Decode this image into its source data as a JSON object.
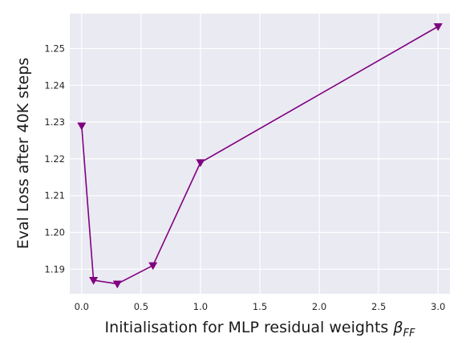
{
  "chart_data": {
    "type": "line",
    "title": "",
    "xlabel_text": "Initialisation for MLP residual weights ",
    "xlabel_symbol": "β",
    "xlabel_subscript": "FF",
    "ylabel": "Eval Loss after 40K steps",
    "xlim": [
      -0.1,
      3.1
    ],
    "ylim": [
      1.1833,
      1.2595
    ],
    "xticks": [
      0.0,
      0.5,
      1.0,
      1.5,
      2.0,
      2.5,
      3.0
    ],
    "xtick_labels": [
      "0.0",
      "0.5",
      "1.0",
      "1.5",
      "2.0",
      "2.5",
      "3.0"
    ],
    "yticks": [
      1.19,
      1.2,
      1.21,
      1.22,
      1.23,
      1.24,
      1.25
    ],
    "ytick_labels": [
      "1.19",
      "1.20",
      "1.21",
      "1.22",
      "1.23",
      "1.24",
      "1.25"
    ],
    "grid": true,
    "series": [
      {
        "color": "#800080",
        "marker": "triangle-down",
        "x": [
          0.0,
          0.1,
          0.3,
          0.6,
          1.0,
          3.0
        ],
        "y": [
          1.229,
          1.187,
          1.186,
          1.191,
          1.219,
          1.256
        ]
      }
    ]
  },
  "colors": {
    "plot_background": "#eaeaf2",
    "grid": "#ffffff",
    "line": "#800080"
  }
}
